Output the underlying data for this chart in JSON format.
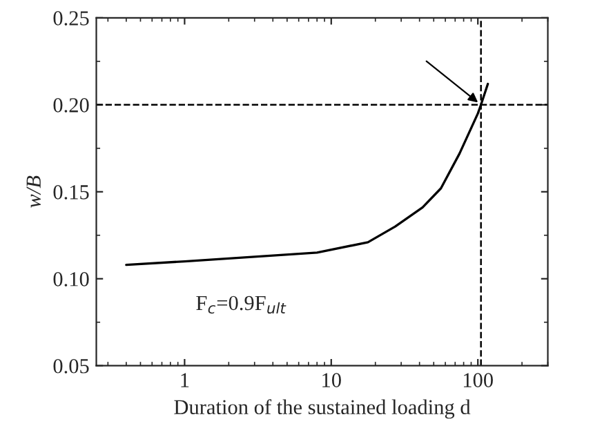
{
  "chart_data": {
    "type": "line",
    "xlabel": "Duration of the sustained loading d",
    "ylabel": "w/B",
    "log": "x",
    "xlim": [
      0.25,
      300
    ],
    "ylim": [
      0.05,
      0.25
    ],
    "xticks": [
      1,
      10,
      100
    ],
    "yticks": [
      {
        "value": 0.05,
        "label": "0.05"
      },
      {
        "value": 0.1,
        "label": "0.10"
      },
      {
        "value": 0.15,
        "label": "0.15"
      },
      {
        "value": 0.2,
        "label": "0.20"
      },
      {
        "value": 0.25,
        "label": "0.25"
      }
    ],
    "grid": false,
    "legend": false,
    "marker": "none",
    "line_style": "solid",
    "series": [
      {
        "color": "#000000",
        "x": [
          0.4,
          1,
          8,
          17.8,
          27.3,
          42,
          56,
          75,
          100,
          105,
          117
        ],
        "values": [
          0.108,
          0.11,
          0.115,
          0.121,
          0.13,
          0.141,
          0.152,
          0.172,
          0.195,
          0.2,
          0.212
        ]
      }
    ],
    "ref_lines": [
      {
        "axis": "x",
        "value": 105,
        "line_style": "dashed",
        "color": "#000000"
      },
      {
        "axis": "y",
        "value": 0.2,
        "line_style": "dashed",
        "color": "#000000"
      }
    ],
    "annotations": [
      "F$_{c}$=0.9F$_{ult}$"
    ]
  }
}
